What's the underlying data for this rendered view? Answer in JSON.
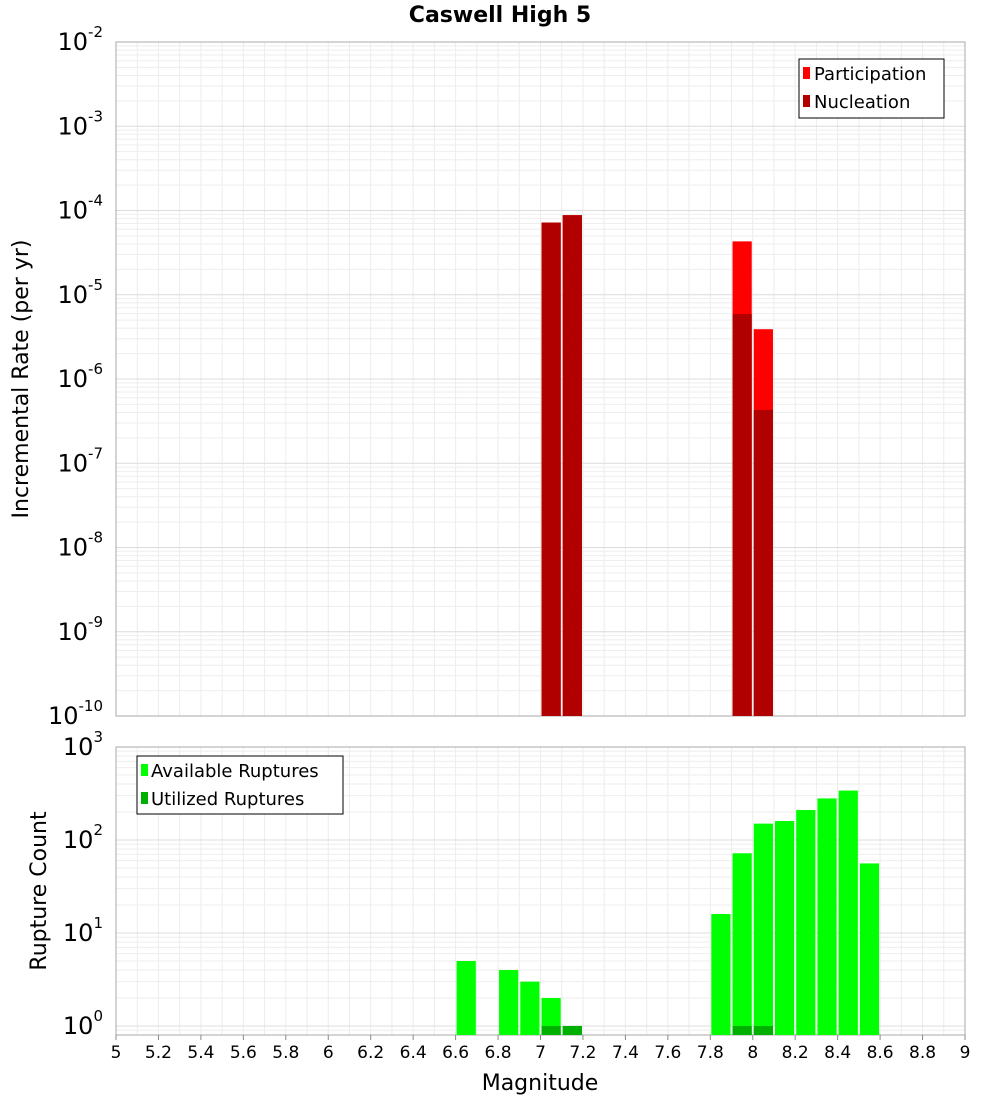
{
  "chart_data": [
    {
      "type": "bar",
      "title": "Caswell High 5",
      "xlabel": "",
      "ylabel": "Incremental Rate (per yr)",
      "yscale": "log",
      "ylim": [
        1e-10,
        0.01
      ],
      "xlim": [
        5,
        9
      ],
      "y_ticks": [
        {
          "base": "10",
          "exp": "-10",
          "value": 1e-10
        },
        {
          "base": "10",
          "exp": "-9",
          "value": 1e-09
        },
        {
          "base": "10",
          "exp": "-8",
          "value": 1e-08
        },
        {
          "base": "10",
          "exp": "-7",
          "value": 1e-07
        },
        {
          "base": "10",
          "exp": "-6",
          "value": 1e-06
        },
        {
          "base": "10",
          "exp": "-5",
          "value": 1e-05
        },
        {
          "base": "10",
          "exp": "-4",
          "value": 0.0001
        },
        {
          "base": "10",
          "exp": "-3",
          "value": 0.001
        },
        {
          "base": "10",
          "exp": "-2",
          "value": 0.01
        }
      ],
      "series": [
        {
          "name": "Participation",
          "color": "#ff0000",
          "x": [
            7.05,
            7.15,
            7.95,
            8.05
          ],
          "values": [
            7.2e-05,
            8.8e-05,
            4.3e-05,
            3.9e-06
          ]
        },
        {
          "name": "Nucleation",
          "color": "#b00000",
          "x": [
            7.05,
            7.15,
            7.95,
            8.05
          ],
          "values": [
            7.2e-05,
            8.8e-05,
            5.9e-06,
            4.3e-07
          ]
        }
      ],
      "legend": {
        "position": "top-right",
        "entries": [
          "Participation",
          "Nucleation"
        ]
      }
    },
    {
      "type": "bar",
      "title": "",
      "xlabel": "Magnitude",
      "ylabel": "Rupture Count",
      "yscale": "log",
      "ylim": [
        0.8,
        1000
      ],
      "xlim": [
        5,
        9
      ],
      "x_ticks": [
        "5",
        "5.2",
        "5.4",
        "5.6",
        "5.8",
        "6",
        "6.2",
        "6.4",
        "6.6",
        "6.8",
        "7",
        "7.2",
        "7.4",
        "7.6",
        "7.8",
        "8",
        "8.2",
        "8.4",
        "8.6",
        "8.8",
        "9"
      ],
      "y_ticks": [
        {
          "base": "10",
          "exp": "0",
          "value": 1
        },
        {
          "base": "10",
          "exp": "1",
          "value": 10
        },
        {
          "base": "10",
          "exp": "2",
          "value": 100
        },
        {
          "base": "10",
          "exp": "3",
          "value": 1000
        }
      ],
      "series": [
        {
          "name": "Available Ruptures",
          "color": "#00ff00",
          "x": [
            6.65,
            6.85,
            6.95,
            7.05,
            7.15,
            7.85,
            7.95,
            8.05,
            8.15,
            8.25,
            8.35,
            8.45,
            8.55
          ],
          "values": [
            5,
            4,
            3,
            2,
            1,
            16,
            72,
            150,
            160,
            210,
            280,
            340,
            56
          ]
        },
        {
          "name": "Utilized Ruptures",
          "color": "#00b000",
          "x": [
            7.05,
            7.15,
            7.95,
            8.05
          ],
          "values": [
            1,
            1,
            1,
            1
          ]
        }
      ],
      "legend": {
        "position": "top-left",
        "entries": [
          "Available Ruptures",
          "Utilized Ruptures"
        ]
      }
    }
  ]
}
